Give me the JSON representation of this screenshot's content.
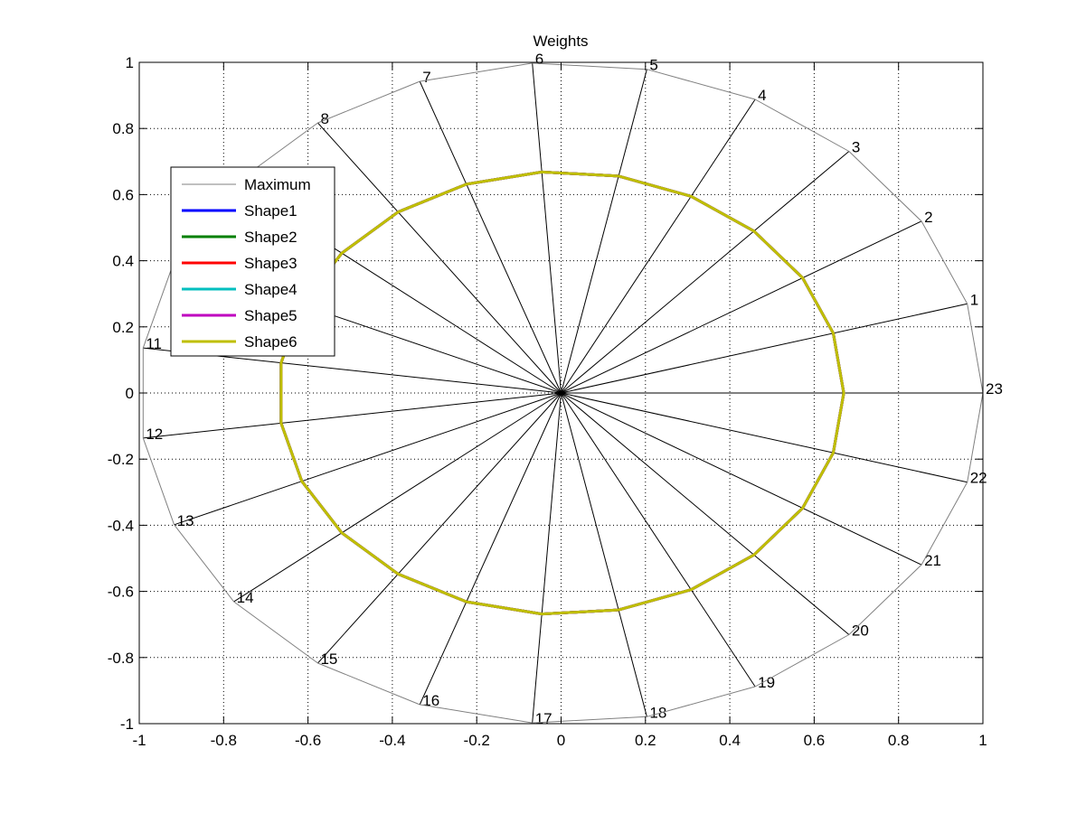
{
  "chart_data": {
    "type": "line",
    "title": "Weights",
    "xlim": [
      -1,
      1
    ],
    "ylim": [
      -1,
      1
    ],
    "xticks": [
      "-1",
      "-0.8",
      "-0.6",
      "-0.4",
      "-0.2",
      "0",
      "0.2",
      "0.4",
      "0.6",
      "0.8",
      "1"
    ],
    "yticks": [
      "1",
      "0.8",
      "0.6",
      "0.4",
      "0.2",
      "0",
      "-0.2",
      "-0.4",
      "-0.6",
      "-0.8",
      "-1"
    ],
    "grid": true,
    "legend_position": "upper-left",
    "spoke_labels": [
      "1",
      "2",
      "3",
      "4",
      "5",
      "6",
      "7",
      "8",
      "9",
      "10",
      "11",
      "12",
      "13",
      "14",
      "15",
      "16",
      "17",
      "18",
      "19",
      "20",
      "21",
      "22",
      "23"
    ],
    "spoke_angles_deg": [
      15.65,
      31.3,
      46.96,
      62.61,
      78.26,
      93.91,
      109.57,
      125.22,
      140.87,
      156.52,
      172.17,
      187.83,
      203.48,
      219.13,
      234.78,
      250.43,
      266.09,
      281.74,
      297.39,
      313.04,
      328.7,
      344.35,
      360
    ],
    "series": [
      {
        "name": "Maximum",
        "color": "#808080",
        "width": 1,
        "values": [
          1,
          1,
          1,
          1,
          1,
          1,
          1,
          1,
          1,
          1,
          1,
          1,
          1,
          1,
          1,
          1,
          1,
          1,
          1,
          1,
          1,
          1,
          1
        ]
      },
      {
        "name": "Shape1",
        "color": "#0000ff",
        "width": 3,
        "values": [
          0.67,
          0.67,
          0.67,
          0.67,
          0.67,
          0.67,
          0.67,
          0.67,
          0.67,
          0.67,
          0.67,
          0.67,
          0.67,
          0.67,
          0.67,
          0.67,
          0.67,
          0.67,
          0.67,
          0.67,
          0.67,
          0.67,
          0.67
        ]
      },
      {
        "name": "Shape2",
        "color": "#008000",
        "width": 3,
        "values": [
          0.67,
          0.67,
          0.67,
          0.67,
          0.67,
          0.67,
          0.67,
          0.67,
          0.67,
          0.67,
          0.67,
          0.67,
          0.67,
          0.67,
          0.67,
          0.67,
          0.67,
          0.67,
          0.67,
          0.67,
          0.67,
          0.67,
          0.67
        ]
      },
      {
        "name": "Shape3",
        "color": "#ff0000",
        "width": 3,
        "values": [
          0.67,
          0.67,
          0.67,
          0.67,
          0.67,
          0.67,
          0.67,
          0.67,
          0.67,
          0.67,
          0.67,
          0.67,
          0.67,
          0.67,
          0.67,
          0.67,
          0.67,
          0.67,
          0.67,
          0.67,
          0.67,
          0.67,
          0.67
        ]
      },
      {
        "name": "Shape4",
        "color": "#00bfbf",
        "width": 3,
        "values": [
          0.67,
          0.67,
          0.67,
          0.67,
          0.67,
          0.67,
          0.67,
          0.67,
          0.67,
          0.67,
          0.67,
          0.67,
          0.67,
          0.67,
          0.67,
          0.67,
          0.67,
          0.67,
          0.67,
          0.67,
          0.67,
          0.67,
          0.67
        ]
      },
      {
        "name": "Shape5",
        "color": "#bf00bf",
        "width": 3,
        "values": [
          0.67,
          0.67,
          0.67,
          0.67,
          0.67,
          0.67,
          0.67,
          0.67,
          0.67,
          0.67,
          0.67,
          0.67,
          0.67,
          0.67,
          0.67,
          0.67,
          0.67,
          0.67,
          0.67,
          0.67,
          0.67,
          0.67,
          0.67
        ]
      },
      {
        "name": "Shape6",
        "color": "#bfbf00",
        "width": 3,
        "values": [
          0.67,
          0.67,
          0.67,
          0.67,
          0.67,
          0.67,
          0.67,
          0.67,
          0.67,
          0.67,
          0.67,
          0.67,
          0.67,
          0.67,
          0.67,
          0.67,
          0.67,
          0.67,
          0.67,
          0.67,
          0.67,
          0.67,
          0.67
        ]
      }
    ]
  }
}
